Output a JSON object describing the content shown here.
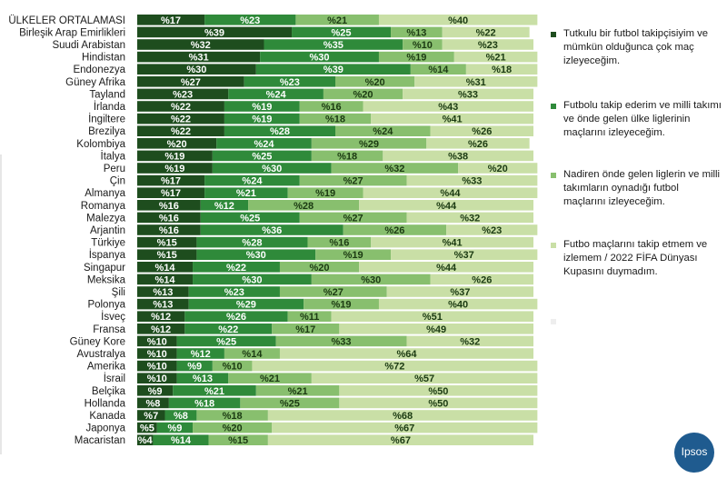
{
  "chart_data": {
    "type": "bar",
    "orientation": "horizontal",
    "stacked": true,
    "value_prefix": "%",
    "categories": [
      "ÜLKELER ORTALAMASI",
      "Birleşik Arap Emirlikleri",
      "Suudi Arabistan",
      "Hindistan",
      "Endonezya",
      "Güney Afrika",
      "Tayland",
      "İrlanda",
      "İngiltere",
      "Brezilya",
      "Kolombiya",
      "İtalya",
      "Peru",
      "Çin",
      "Almanya",
      "Romanya",
      "Malezya",
      "Arjantin",
      "Türkiye",
      "İspanya",
      "Singapur",
      "Meksika",
      "Şili",
      "Polonya",
      "İsveç",
      "Fransa",
      "Güney Kore",
      "Avustralya",
      "Amerika",
      "İsrail",
      "Belçika",
      "Hollanda",
      "Kanada",
      "Japonya",
      "Macaristan"
    ],
    "series": [
      {
        "name": "Tutkulu bir futbol takipçisiyim ve mümkün olduğunca çok maç izleyeceğim.",
        "color": "#1e4d1e",
        "values": [
          17,
          39,
          32,
          31,
          30,
          27,
          23,
          22,
          22,
          22,
          20,
          19,
          19,
          17,
          17,
          16,
          16,
          16,
          15,
          15,
          14,
          14,
          13,
          13,
          12,
          12,
          10,
          10,
          10,
          10,
          9,
          8,
          7,
          5,
          4
        ]
      },
      {
        "name": "Futbolu takip ederim ve milli takımı ve önde gelen ülke liglerinin maçlarını izleyeceğim.",
        "color": "#2f8a3a",
        "values": [
          23,
          25,
          35,
          30,
          39,
          23,
          24,
          19,
          19,
          28,
          24,
          25,
          30,
          24,
          21,
          12,
          25,
          36,
          28,
          30,
          22,
          30,
          23,
          29,
          26,
          22,
          25,
          12,
          9,
          13,
          21,
          18,
          8,
          9,
          14
        ]
      },
      {
        "name": "Nadiren önde gelen liglerin ve milli takımların oynadığı futbol maçlarını izleyeceğim.",
        "color": "#88bf6e",
        "values": [
          21,
          13,
          10,
          19,
          14,
          20,
          20,
          16,
          18,
          24,
          29,
          18,
          32,
          27,
          19,
          28,
          27,
          26,
          16,
          19,
          20,
          30,
          27,
          19,
          11,
          17,
          33,
          14,
          10,
          21,
          21,
          25,
          18,
          20,
          15
        ]
      },
      {
        "name": "Futbo maçlarını takip etmem ve izlemem / 2022 FİFA Dünyası Kupasını duymadım.",
        "color": "#c9dfa6",
        "values": [
          40,
          22,
          23,
          21,
          18,
          31,
          33,
          43,
          41,
          26,
          26,
          38,
          20,
          33,
          44,
          44,
          32,
          23,
          41,
          37,
          44,
          26,
          37,
          40,
          51,
          49,
          32,
          64,
          72,
          57,
          50,
          50,
          68,
          67,
          67
        ]
      }
    ],
    "legend_extra_label": "",
    "xlim": [
      0,
      100
    ],
    "legend_position": "right"
  },
  "legend": {
    "items": [
      {
        "label": "Tutkulu bir futbol takipçisiyim ve mümkün olduğunca çok maç izleyeceğim.",
        "color": "#1e4d1e"
      },
      {
        "label": "Futbolu takip ederim ve milli takımı ve önde gelen ülke liglerinin maçlarını izleyeceğim.",
        "color": "#2f8a3a"
      },
      {
        "label": "Nadiren önde gelen liglerin ve milli takımların oynadığı futbol maçlarını izleyeceğim.",
        "color": "#88bf6e"
      },
      {
        "label": "Futbo maçlarını takip etmem ve izlemem / 2022 FİFA Dünyası Kupasını duymadım.",
        "color": "#c9dfa6"
      },
      {
        "label": "",
        "color": "#eeeeee"
      }
    ]
  },
  "logo": {
    "text": "Ipsos",
    "color": "#1f5b8f"
  }
}
